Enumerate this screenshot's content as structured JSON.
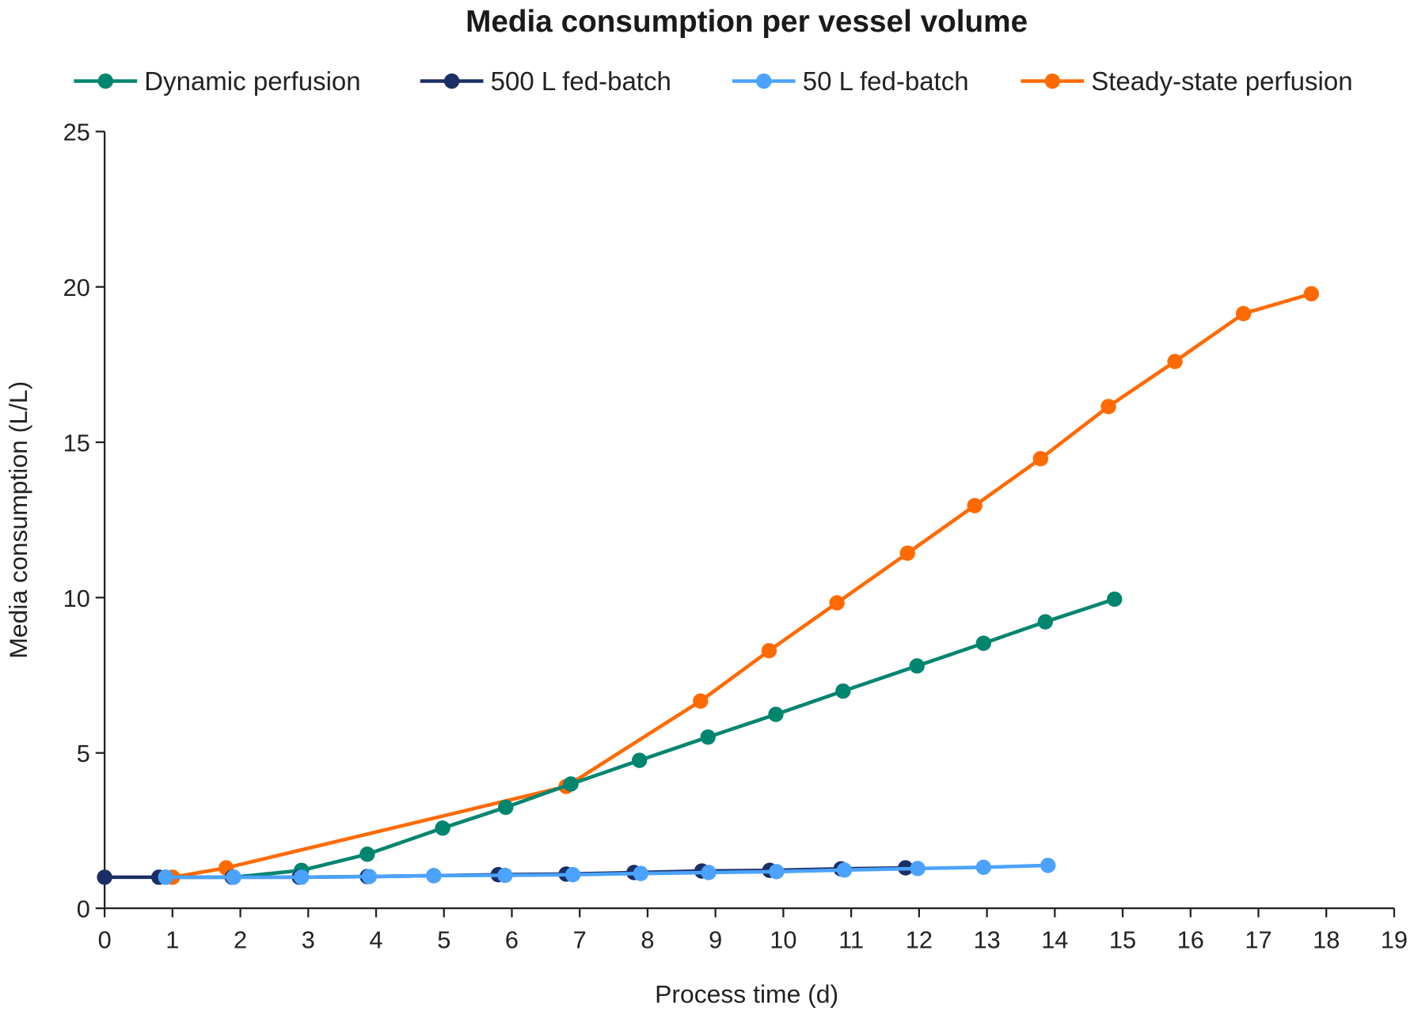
{
  "chart_data": {
    "type": "line",
    "title": "Media consumption per vessel volume",
    "xlabel": "Process time (d)",
    "ylabel": "Media consumption (L/L)",
    "xlim": [
      0,
      19
    ],
    "ylim": [
      0,
      25
    ],
    "xticks": [
      "0",
      "1",
      "2",
      "3",
      "4",
      "5",
      "6",
      "7",
      "8",
      "9",
      "10",
      "11",
      "12",
      "13",
      "14",
      "15",
      "16",
      "17",
      "18",
      "19"
    ],
    "yticks": [
      "0",
      "5",
      "10",
      "15",
      "20",
      "25"
    ],
    "grid": false,
    "legend_position": "top",
    "series": [
      {
        "name": "Dynamic perfusion",
        "color": "#00856F",
        "x": [
          0.9,
          1.9,
          2.9,
          3.87,
          4.98,
          5.91,
          6.87,
          7.88,
          8.89,
          9.89,
          10.88,
          11.97,
          12.95,
          13.86,
          14.88
        ],
        "y": [
          1.0,
          1.0,
          1.22,
          1.74,
          2.58,
          3.25,
          4.0,
          4.76,
          5.51,
          6.24,
          6.99,
          7.8,
          8.53,
          9.22,
          9.95
        ]
      },
      {
        "name": "500 L fed-batch",
        "color": "#1B2F66",
        "x": [
          0,
          0.8,
          1.88,
          2.87,
          3.87,
          4.85,
          5.8,
          6.8,
          7.8,
          8.8,
          9.8,
          10.85,
          11.8
        ],
        "y": [
          1.0,
          1.0,
          1.0,
          1.0,
          1.02,
          1.05,
          1.08,
          1.1,
          1.15,
          1.2,
          1.22,
          1.27,
          1.3
        ]
      },
      {
        "name": "50 L fed-batch",
        "color": "#4BA3FF",
        "x": [
          0.9,
          1.9,
          2.9,
          3.9,
          4.85,
          5.9,
          6.9,
          7.9,
          8.9,
          9.9,
          10.9,
          11.98,
          12.95,
          13.9
        ],
        "y": [
          1.0,
          1.0,
          1.0,
          1.02,
          1.05,
          1.06,
          1.08,
          1.12,
          1.15,
          1.18,
          1.23,
          1.28,
          1.32,
          1.38
        ]
      },
      {
        "name": "Steady-state perfusion",
        "color": "#FF6A00",
        "x": [
          1.0,
          1.79,
          6.8,
          8.78,
          9.79,
          10.79,
          11.83,
          12.82,
          13.79,
          14.79,
          15.77,
          16.78,
          17.78
        ],
        "y": [
          1.0,
          1.3,
          3.92,
          6.67,
          8.29,
          9.83,
          11.43,
          12.96,
          14.47,
          16.15,
          17.6,
          19.14,
          19.78
        ]
      }
    ]
  }
}
